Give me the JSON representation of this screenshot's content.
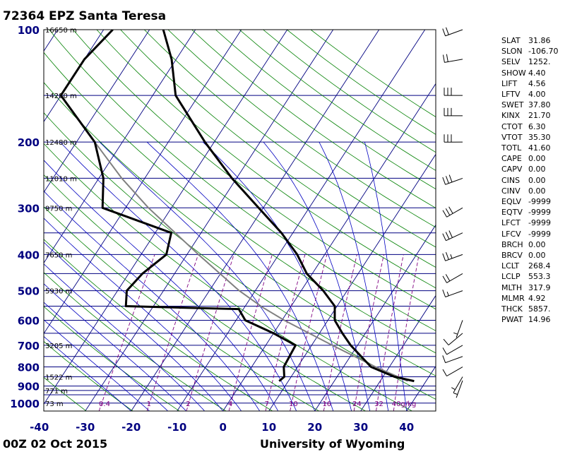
{
  "header": {
    "title": "72364 EPZ Santa Teresa"
  },
  "footer": {
    "left": "00Z 02 Oct 2015",
    "right": "University of Wyoming"
  },
  "indices": [
    {
      "name": "SLAT",
      "value": "31.86"
    },
    {
      "name": "SLON",
      "value": "-106.70"
    },
    {
      "name": "SELV",
      "value": "1252."
    },
    {
      "name": "SHOW",
      "value": "4.40"
    },
    {
      "name": "LIFT",
      "value": "4.56"
    },
    {
      "name": "LFTV",
      "value": "4.00"
    },
    {
      "name": "SWET",
      "value": "37.80"
    },
    {
      "name": "KINX",
      "value": "21.70"
    },
    {
      "name": "CTOT",
      "value": "6.30"
    },
    {
      "name": "VTOT",
      "value": "35.30"
    },
    {
      "name": "TOTL",
      "value": "41.60"
    },
    {
      "name": "CAPE",
      "value": "0.00"
    },
    {
      "name": "CAPV",
      "value": "0.00"
    },
    {
      "name": "CINS",
      "value": "0.00"
    },
    {
      "name": "CINV",
      "value": "0.00"
    },
    {
      "name": "EQLV",
      "value": "-9999"
    },
    {
      "name": "EQTV",
      "value": "-9999"
    },
    {
      "name": "LFCT",
      "value": "-9999"
    },
    {
      "name": "LFCV",
      "value": "-9999"
    },
    {
      "name": "BRCH",
      "value": "0.00"
    },
    {
      "name": "BRCV",
      "value": "0.00"
    },
    {
      "name": "LCLT",
      "value": "268.4"
    },
    {
      "name": "LCLP",
      "value": "553.3"
    },
    {
      "name": "MLTH",
      "value": "317.9"
    },
    {
      "name": "MLMR",
      "value": "4.92"
    },
    {
      "name": "THCK",
      "value": "5857."
    },
    {
      "name": "PWAT",
      "value": "14.96"
    }
  ],
  "colors": {
    "isobar": "#000080",
    "isotherm": "#000080",
    "dry_adiabat": "#008000",
    "moist_adiabat": "#0000c0",
    "mixing_ratio": "#800080",
    "profile": "#000000",
    "parcel": "#808080"
  },
  "chart_data": {
    "type": "skew-t",
    "title": "72364 EPZ Santa Teresa",
    "xlabel": "",
    "ylabel": "",
    "x_ticks": [
      -40,
      -30,
      -20,
      -10,
      0,
      10,
      20,
      30,
      40
    ],
    "p_ticks": [
      100,
      200,
      300,
      400,
      500,
      600,
      700,
      800,
      900,
      1000
    ],
    "xlim": [
      -40,
      45
    ],
    "ylim_hpa": [
      1050,
      100
    ],
    "isobar_lines": [
      100,
      150,
      200,
      250,
      300,
      350,
      400,
      450,
      500,
      550,
      600,
      650,
      700,
      750,
      800,
      850,
      900,
      925,
      950,
      1000,
      1050
    ],
    "height_labels": [
      {
        "p": 100,
        "label": "16650 m"
      },
      {
        "p": 150,
        "label": "14280 m"
      },
      {
        "p": 200,
        "label": "12480 m"
      },
      {
        "p": 250,
        "label": "11010 m"
      },
      {
        "p": 300,
        "label": "9750 m"
      },
      {
        "p": 400,
        "label": "7650 m"
      },
      {
        "p": 500,
        "label": "5930 m"
      },
      {
        "p": 700,
        "label": "3205 m"
      },
      {
        "p": 850,
        "label": "1522 m"
      },
      {
        "p": 925,
        "label": "771 m"
      },
      {
        "p": 1000,
        "label": "73 m"
      }
    ],
    "mixing_ratio_labels": [
      "0.4",
      "1",
      "2",
      "4",
      "7",
      "10",
      "16",
      "24",
      "32",
      "40g/kg"
    ],
    "mixing_ratio_values": [
      0.4,
      1,
      2,
      4,
      7,
      10,
      16,
      24,
      32,
      40
    ],
    "temperature": [
      {
        "p": 873,
        "t": 37.4
      },
      {
        "p": 850,
        "t": 32.5
      },
      {
        "p": 800,
        "t": 26.0
      },
      {
        "p": 700,
        "t": 18.5
      },
      {
        "p": 650,
        "t": 15.0
      },
      {
        "p": 600,
        "t": 11.5
      },
      {
        "p": 550,
        "t": 9.5
      },
      {
        "p": 500,
        "t": 4.8
      },
      {
        "p": 450,
        "t": -1.2
      },
      {
        "p": 400,
        "t": -6.0
      },
      {
        "p": 350,
        "t": -12.5
      },
      {
        "p": 300,
        "t": -21.0
      },
      {
        "p": 250,
        "t": -31.0
      },
      {
        "p": 200,
        "t": -42.0
      },
      {
        "p": 150,
        "t": -55.0
      },
      {
        "p": 120,
        "t": -61.0
      },
      {
        "p": 100,
        "t": -67.0
      }
    ],
    "dewpoint": [
      {
        "p": 873,
        "t": 8.0
      },
      {
        "p": 850,
        "t": 8.5
      },
      {
        "p": 800,
        "t": 7.0
      },
      {
        "p": 700,
        "t": 6.5
      },
      {
        "p": 650,
        "t": 0.0
      },
      {
        "p": 600,
        "t": -8.0
      },
      {
        "p": 560,
        "t": -11.0
      },
      {
        "p": 550,
        "t": -36.0
      },
      {
        "p": 500,
        "t": -38.0
      },
      {
        "p": 450,
        "t": -37.0
      },
      {
        "p": 400,
        "t": -34.5
      },
      {
        "p": 350,
        "t": -36.5
      },
      {
        "p": 300,
        "t": -55.0
      },
      {
        "p": 250,
        "t": -59.0
      },
      {
        "p": 200,
        "t": -66.0
      },
      {
        "p": 150,
        "t": -80.0
      },
      {
        "p": 120,
        "t": -80.0
      },
      {
        "p": 100,
        "t": -78.0
      }
    ],
    "parcel": [
      {
        "p": 873,
        "t": 36.0
      },
      {
        "p": 800,
        "t": 27.0
      },
      {
        "p": 700,
        "t": 14.5
      },
      {
        "p": 600,
        "t": 0.5
      },
      {
        "p": 553,
        "t": -6.2
      },
      {
        "p": 500,
        "t": -13.5
      },
      {
        "p": 400,
        "t": -27.5
      },
      {
        "p": 300,
        "t": -45.0
      },
      {
        "p": 250,
        "t": -55.0
      },
      {
        "p": 200,
        "t": -66.0
      },
      {
        "p": 150,
        "t": -80.0
      }
    ],
    "wind_barbs": [
      {
        "p": 870,
        "dir": 200,
        "kt": 5
      },
      {
        "p": 850,
        "dir": 210,
        "kt": 5
      },
      {
        "p": 800,
        "dir": 240,
        "kt": 10
      },
      {
        "p": 750,
        "dir": 250,
        "kt": 10
      },
      {
        "p": 700,
        "dir": 240,
        "kt": 10
      },
      {
        "p": 650,
        "dir": 230,
        "kt": 10
      },
      {
        "p": 600,
        "dir": 200,
        "kt": 5
      },
      {
        "p": 500,
        "dir": 250,
        "kt": 15
      },
      {
        "p": 450,
        "dir": 240,
        "kt": 20
      },
      {
        "p": 400,
        "dir": 250,
        "kt": 25
      },
      {
        "p": 350,
        "dir": 245,
        "kt": 30
      },
      {
        "p": 300,
        "dir": 240,
        "kt": 30
      },
      {
        "p": 250,
        "dir": 250,
        "kt": 30
      },
      {
        "p": 200,
        "dir": 270,
        "kt": 30
      },
      {
        "p": 170,
        "dir": 270,
        "kt": 30
      },
      {
        "p": 150,
        "dir": 270,
        "kt": 30
      },
      {
        "p": 120,
        "dir": 260,
        "kt": 20
      },
      {
        "p": 100,
        "dir": 250,
        "kt": 20
      }
    ]
  }
}
